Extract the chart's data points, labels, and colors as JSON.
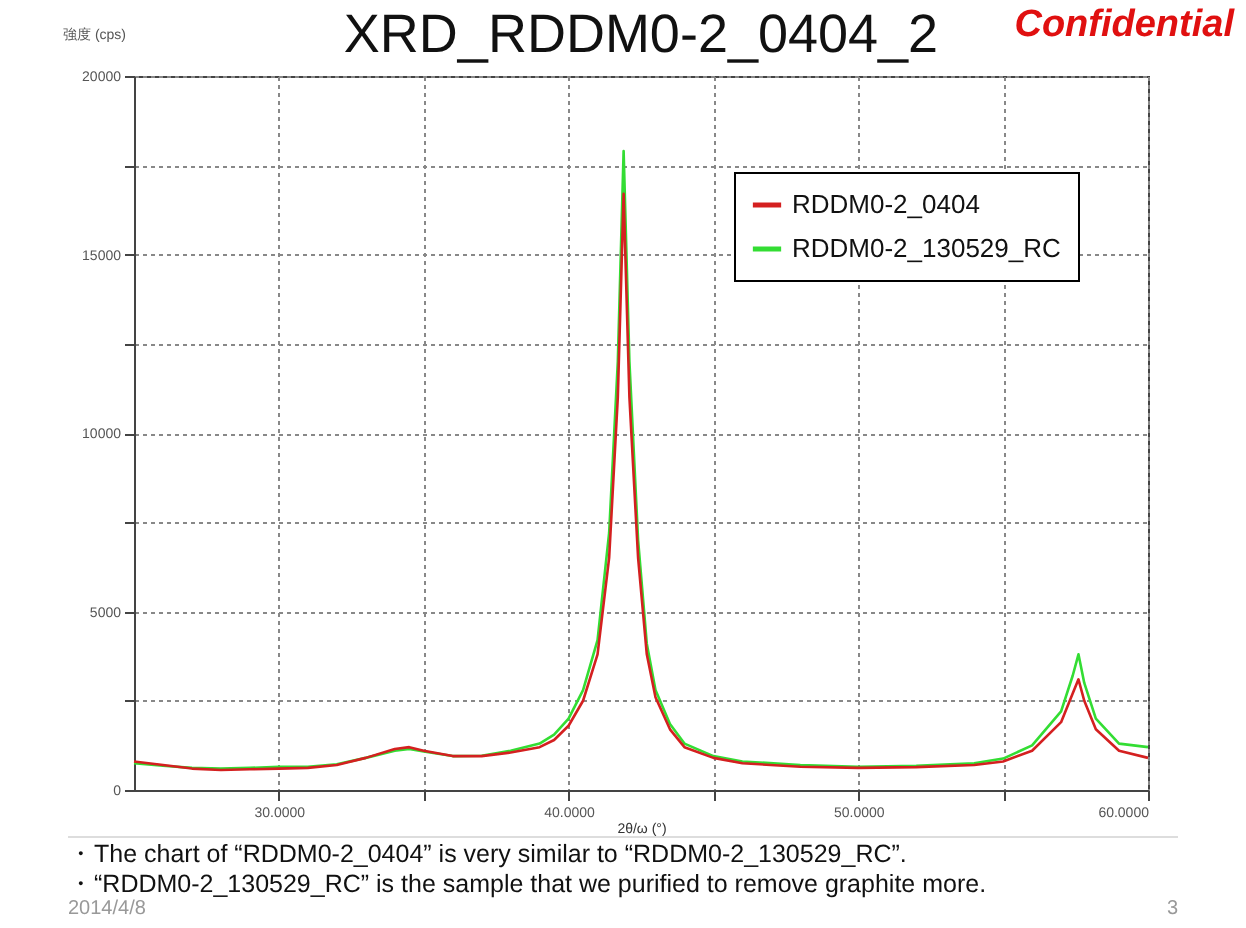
{
  "chart_data": {
    "type": "line",
    "title": "XRD_RDDM0-2_0404_2",
    "xlabel": "2θ/ω (°)",
    "ylabel": "強度 (cps)",
    "annotations": [
      "Confidential",
      "・The chart of “RDDM0-2_0404” is very similar to “RDDM0-2_130529_RC”.",
      "・“RDDM0-2_130529_RC” is the sample that we purified to remove graphite more.",
      "2014/4/8",
      "3"
    ],
    "x": [
      25,
      26,
      27,
      28,
      29,
      30,
      31,
      32,
      33,
      34,
      34.5,
      35,
      36,
      37,
      38,
      39,
      39.5,
      40,
      40.5,
      41,
      41.4,
      41.7,
      41.9,
      42.1,
      42.4,
      42.7,
      43,
      43.5,
      44,
      45,
      46,
      48,
      50,
      52,
      54,
      55,
      56,
      57,
      57.4,
      57.6,
      57.8,
      58.2,
      59,
      60
    ],
    "series": [
      {
        "name": "RDDM0-2_0404",
        "color": "#d42020",
        "values": [
          800,
          700,
          600,
          560,
          580,
          600,
          620,
          700,
          900,
          1150,
          1200,
          1100,
          950,
          950,
          1050,
          1200,
          1400,
          1800,
          2500,
          3800,
          6500,
          11000,
          16700,
          11000,
          6500,
          3800,
          2600,
          1700,
          1200,
          900,
          750,
          650,
          620,
          640,
          700,
          800,
          1100,
          1900,
          2700,
          3100,
          2500,
          1700,
          1100,
          900
        ]
      },
      {
        "name": "RDDM0-2_130529_RC",
        "color": "#33dd33",
        "values": [
          750,
          680,
          620,
          600,
          620,
          650,
          650,
          720,
          900,
          1100,
          1150,
          1080,
          950,
          960,
          1100,
          1300,
          1550,
          2000,
          2800,
          4200,
          7200,
          12000,
          17900,
          12000,
          7000,
          4100,
          2800,
          1850,
          1300,
          950,
          800,
          700,
          650,
          680,
          750,
          880,
          1250,
          2200,
          3200,
          3800,
          3000,
          2000,
          1300,
          1200
        ]
      }
    ],
    "xlim": [
      25,
      60
    ],
    "xticks": [
      {
        "value": 30,
        "label": "30.0000"
      },
      {
        "value": 35,
        "label": null
      },
      {
        "value": 40,
        "label": "40.0000"
      },
      {
        "value": 45,
        "label": null
      },
      {
        "value": 50,
        "label": "50.0000"
      },
      {
        "value": 55,
        "label": null
      },
      {
        "value": 60,
        "label": "60.0000"
      }
    ],
    "ylim": [
      0,
      20000
    ],
    "yticks": [
      0,
      {
        "value": 2500,
        "label": null
      },
      5000,
      {
        "value": 7500,
        "label": null
      },
      10000,
      {
        "value": 12500,
        "label": null
      },
      15000,
      {
        "value": 17500,
        "label": null
      },
      20000
    ],
    "grid": true,
    "legend": "top right",
    "marker": "none",
    "line_style": "solid"
  }
}
